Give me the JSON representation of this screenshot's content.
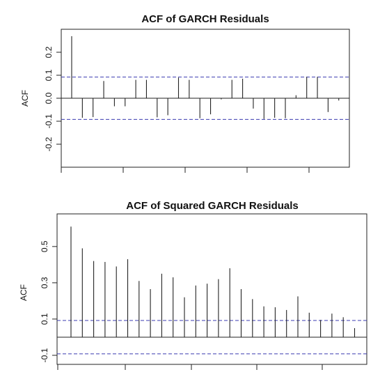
{
  "chart_data": [
    {
      "type": "bar",
      "subtype": "acf-stem",
      "title": "ACF of GARCH Residuals",
      "xlabel": "",
      "ylabel": "ACF",
      "ylim": [
        -0.3,
        0.3
      ],
      "y_ticks": [
        -0.2,
        -0.1,
        0.0,
        0.1,
        0.2
      ],
      "y_tick_labels": [
        "-0.2",
        "-0.1",
        "0.0",
        "0.1",
        "0.2"
      ],
      "confidence_band": [
        0.092,
        -0.092
      ],
      "lags": [
        0,
        1,
        2,
        3,
        4,
        5,
        6,
        7,
        8,
        9,
        10,
        11,
        12,
        13,
        14,
        15,
        16,
        17,
        18,
        19,
        20,
        21,
        22,
        23,
        24,
        25,
        26
      ],
      "values": [
        0.27,
        -0.085,
        -0.082,
        0.075,
        -0.035,
        -0.035,
        0.08,
        0.08,
        -0.083,
        -0.074,
        0.09,
        0.08,
        -0.087,
        -0.07,
        -0.005,
        0.08,
        0.085,
        -0.045,
        -0.09,
        -0.085,
        -0.087,
        0.013,
        0.093,
        0.093,
        -0.06,
        -0.01,
        0.0
      ],
      "grid": false,
      "colors": {
        "bars": "#222222",
        "band": "#3b3bb0",
        "frame": "#222222"
      }
    },
    {
      "type": "bar",
      "subtype": "acf-stem",
      "title": "ACF of Squared GARCH Residuals",
      "xlabel": "",
      "ylabel": "ACF",
      "ylim": [
        -0.15,
        0.68
      ],
      "y_ticks": [
        -0.1,
        0.1,
        0.3,
        0.5
      ],
      "y_tick_labels": [
        "-0.1",
        "0.1",
        "0.3",
        "0.5"
      ],
      "confidence_band": [
        0.092,
        -0.092
      ],
      "lags": [
        0,
        1,
        2,
        3,
        4,
        5,
        6,
        7,
        8,
        9,
        10,
        11,
        12,
        13,
        14,
        15,
        16,
        17,
        18,
        19,
        20,
        21,
        22,
        23,
        24,
        25,
        26
      ],
      "values": [
        0.61,
        0.49,
        0.42,
        0.415,
        0.39,
        0.43,
        0.31,
        0.265,
        0.35,
        0.33,
        0.22,
        0.285,
        0.295,
        0.32,
        0.38,
        0.265,
        0.21,
        0.17,
        0.165,
        0.15,
        0.225,
        0.135,
        0.095,
        0.13,
        0.11,
        0.05,
        0.0
      ],
      "grid": false,
      "colors": {
        "bars": "#222222",
        "band": "#3b3bb0",
        "frame": "#222222"
      }
    }
  ]
}
